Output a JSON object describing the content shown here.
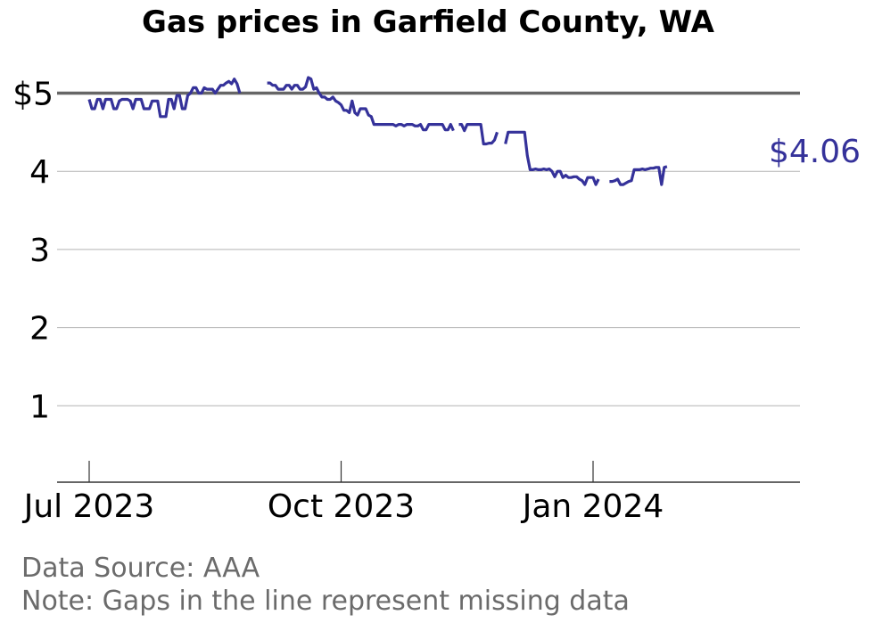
{
  "chart_data": {
    "type": "line",
    "title": "Gas prices in Garfield County, WA",
    "ylim": [
      0,
      5.3
    ],
    "xlim": [
      "2023-06-20",
      "2024-03-30"
    ],
    "y_ticks": [
      {
        "value": 1,
        "label": "1"
      },
      {
        "value": 2,
        "label": "2"
      },
      {
        "value": 3,
        "label": "3"
      },
      {
        "value": 4,
        "label": "4"
      },
      {
        "value": 5,
        "label": "$5"
      }
    ],
    "x_ticks": [
      {
        "date": "2023-07-01",
        "label": "Jul 2023"
      },
      {
        "date": "2023-10-01",
        "label": "Oct 2023"
      },
      {
        "date": "2024-01-01",
        "label": "Jan 2024"
      }
    ],
    "reference_line": {
      "value": 5
    },
    "grid": true,
    "line_color": "#35329a",
    "end_label": "$4.06",
    "series": [
      {
        "segments": [
          [
            [
              "2023-07-01",
              4.92
            ],
            [
              "2023-07-02",
              4.8
            ],
            [
              "2023-07-03",
              4.8
            ],
            [
              "2023-07-04",
              4.92
            ],
            [
              "2023-07-05",
              4.92
            ],
            [
              "2023-07-06",
              4.8
            ],
            [
              "2023-07-07",
              4.92
            ],
            [
              "2023-07-08",
              4.92
            ],
            [
              "2023-07-09",
              4.92
            ],
            [
              "2023-07-10",
              4.8
            ],
            [
              "2023-07-11",
              4.8
            ],
            [
              "2023-07-12",
              4.9
            ],
            [
              "2023-07-13",
              4.92
            ],
            [
              "2023-07-14",
              4.92
            ],
            [
              "2023-07-15",
              4.92
            ],
            [
              "2023-07-16",
              4.9
            ],
            [
              "2023-07-17",
              4.8
            ],
            [
              "2023-07-18",
              4.92
            ],
            [
              "2023-07-19",
              4.92
            ],
            [
              "2023-07-20",
              4.92
            ],
            [
              "2023-07-21",
              4.8
            ],
            [
              "2023-07-22",
              4.8
            ],
            [
              "2023-07-23",
              4.8
            ],
            [
              "2023-07-24",
              4.9
            ],
            [
              "2023-07-25",
              4.9
            ],
            [
              "2023-07-26",
              4.9
            ],
            [
              "2023-07-27",
              4.7
            ],
            [
              "2023-07-28",
              4.7
            ],
            [
              "2023-07-29",
              4.7
            ],
            [
              "2023-07-30",
              4.92
            ],
            [
              "2023-07-31",
              4.92
            ],
            [
              "2023-08-01",
              4.8
            ],
            [
              "2023-08-02",
              4.97
            ],
            [
              "2023-08-03",
              4.97
            ],
            [
              "2023-08-04",
              4.8
            ],
            [
              "2023-08-05",
              4.8
            ],
            [
              "2023-08-06",
              4.97
            ],
            [
              "2023-08-07",
              5.0
            ],
            [
              "2023-08-08",
              5.07
            ],
            [
              "2023-08-09",
              5.07
            ],
            [
              "2023-08-10",
              5.0
            ],
            [
              "2023-08-11",
              5.0
            ],
            [
              "2023-08-12",
              5.07
            ],
            [
              "2023-08-13",
              5.05
            ],
            [
              "2023-08-14",
              5.05
            ],
            [
              "2023-08-15",
              5.05
            ],
            [
              "2023-08-16",
              5.0
            ],
            [
              "2023-08-17",
              5.05
            ],
            [
              "2023-08-18",
              5.1
            ],
            [
              "2023-08-19",
              5.1
            ],
            [
              "2023-08-20",
              5.13
            ],
            [
              "2023-08-21",
              5.15
            ],
            [
              "2023-08-22",
              5.12
            ],
            [
              "2023-08-23",
              5.18
            ],
            [
              "2023-08-24",
              5.12
            ],
            [
              "2023-08-25",
              5.0
            ]
          ],
          [
            [
              "2023-09-04",
              5.13
            ],
            [
              "2023-09-05",
              5.13
            ],
            [
              "2023-09-06",
              5.1
            ],
            [
              "2023-09-07",
              5.1
            ],
            [
              "2023-09-08",
              5.05
            ],
            [
              "2023-09-09",
              5.05
            ],
            [
              "2023-09-10",
              5.05
            ],
            [
              "2023-09-11",
              5.1
            ],
            [
              "2023-09-12",
              5.1
            ],
            [
              "2023-09-13",
              5.05
            ],
            [
              "2023-09-14",
              5.1
            ],
            [
              "2023-09-15",
              5.1
            ],
            [
              "2023-09-16",
              5.05
            ],
            [
              "2023-09-17",
              5.05
            ],
            [
              "2023-09-18",
              5.08
            ],
            [
              "2023-09-19",
              5.2
            ],
            [
              "2023-09-20",
              5.18
            ],
            [
              "2023-09-21",
              5.05
            ],
            [
              "2023-09-22",
              5.07
            ],
            [
              "2023-09-23",
              5.0
            ],
            [
              "2023-09-24",
              4.95
            ],
            [
              "2023-09-25",
              4.95
            ],
            [
              "2023-09-26",
              4.92
            ],
            [
              "2023-09-27",
              4.92
            ],
            [
              "2023-09-28",
              4.95
            ],
            [
              "2023-09-29",
              4.9
            ],
            [
              "2023-09-30",
              4.88
            ],
            [
              "2023-10-01",
              4.85
            ],
            [
              "2023-10-02",
              4.78
            ],
            [
              "2023-10-03",
              4.78
            ],
            [
              "2023-10-04",
              4.75
            ],
            [
              "2023-10-05",
              4.9
            ],
            [
              "2023-10-06",
              4.75
            ],
            [
              "2023-10-07",
              4.72
            ],
            [
              "2023-10-08",
              4.8
            ],
            [
              "2023-10-09",
              4.8
            ],
            [
              "2023-10-10",
              4.8
            ],
            [
              "2023-10-11",
              4.72
            ],
            [
              "2023-10-12",
              4.7
            ],
            [
              "2023-10-13",
              4.6
            ],
            [
              "2023-10-14",
              4.6
            ],
            [
              "2023-10-15",
              4.6
            ],
            [
              "2023-10-16",
              4.6
            ],
            [
              "2023-10-17",
              4.6
            ],
            [
              "2023-10-18",
              4.6
            ],
            [
              "2023-10-19",
              4.6
            ],
            [
              "2023-10-20",
              4.6
            ],
            [
              "2023-10-21",
              4.58
            ],
            [
              "2023-10-22",
              4.6
            ],
            [
              "2023-10-23",
              4.6
            ],
            [
              "2023-10-24",
              4.58
            ],
            [
              "2023-10-25",
              4.6
            ],
            [
              "2023-10-26",
              4.6
            ],
            [
              "2023-10-27",
              4.6
            ],
            [
              "2023-10-28",
              4.58
            ],
            [
              "2023-10-29",
              4.58
            ],
            [
              "2023-10-30",
              4.6
            ],
            [
              "2023-10-31",
              4.53
            ],
            [
              "2023-11-01",
              4.53
            ],
            [
              "2023-11-02",
              4.6
            ],
            [
              "2023-11-03",
              4.6
            ],
            [
              "2023-11-04",
              4.6
            ],
            [
              "2023-11-05",
              4.6
            ],
            [
              "2023-11-06",
              4.6
            ],
            [
              "2023-11-07",
              4.6
            ],
            [
              "2023-11-08",
              4.53
            ],
            [
              "2023-11-09",
              4.53
            ],
            [
              "2023-11-10",
              4.6
            ],
            [
              "2023-11-11",
              4.52
            ]
          ],
          [
            [
              "2023-11-13",
              4.6
            ],
            [
              "2023-11-14",
              4.6
            ],
            [
              "2023-11-15",
              4.52
            ],
            [
              "2023-11-16",
              4.6
            ],
            [
              "2023-11-17",
              4.6
            ],
            [
              "2023-11-18",
              4.6
            ],
            [
              "2023-11-19",
              4.6
            ],
            [
              "2023-11-20",
              4.6
            ],
            [
              "2023-11-21",
              4.6
            ],
            [
              "2023-11-22",
              4.35
            ],
            [
              "2023-11-23",
              4.35
            ],
            [
              "2023-11-24",
              4.36
            ],
            [
              "2023-11-25",
              4.36
            ],
            [
              "2023-11-26",
              4.4
            ],
            [
              "2023-11-27",
              4.5
            ]
          ],
          [
            [
              "2023-11-30",
              4.35
            ],
            [
              "2023-12-01",
              4.5
            ],
            [
              "2023-12-02",
              4.5
            ],
            [
              "2023-12-03",
              4.5
            ],
            [
              "2023-12-04",
              4.5
            ],
            [
              "2023-12-05",
              4.5
            ],
            [
              "2023-12-06",
              4.5
            ],
            [
              "2023-12-07",
              4.5
            ],
            [
              "2023-12-08",
              4.2
            ],
            [
              "2023-12-09",
              4.02
            ],
            [
              "2023-12-10",
              4.02
            ],
            [
              "2023-12-11",
              4.03
            ],
            [
              "2023-12-12",
              4.02
            ],
            [
              "2023-12-13",
              4.02
            ],
            [
              "2023-12-14",
              4.03
            ],
            [
              "2023-12-15",
              4.02
            ],
            [
              "2023-12-16",
              4.03
            ],
            [
              "2023-12-17",
              4.0
            ],
            [
              "2023-12-18",
              3.93
            ],
            [
              "2023-12-19",
              4.0
            ],
            [
              "2023-12-20",
              4.0
            ],
            [
              "2023-12-21",
              3.92
            ],
            [
              "2023-12-22",
              3.95
            ],
            [
              "2023-12-23",
              3.92
            ],
            [
              "2023-12-24",
              3.92
            ],
            [
              "2023-12-25",
              3.93
            ],
            [
              "2023-12-26",
              3.93
            ],
            [
              "2023-12-27",
              3.9
            ],
            [
              "2023-12-28",
              3.88
            ],
            [
              "2023-12-29",
              3.83
            ],
            [
              "2023-12-30",
              3.92
            ],
            [
              "2023-12-31",
              3.92
            ],
            [
              "2024-01-01",
              3.92
            ],
            [
              "2024-01-02",
              3.83
            ],
            [
              "2024-01-03",
              3.9
            ]
          ],
          [
            [
              "2024-01-07",
              3.87
            ],
            [
              "2024-01-08",
              3.87
            ],
            [
              "2024-01-09",
              3.88
            ],
            [
              "2024-01-10",
              3.9
            ],
            [
              "2024-01-11",
              3.83
            ],
            [
              "2024-01-12",
              3.83
            ],
            [
              "2024-01-13",
              3.85
            ],
            [
              "2024-01-14",
              3.87
            ],
            [
              "2024-01-15",
              3.88
            ],
            [
              "2024-01-16",
              4.02
            ],
            [
              "2024-01-17",
              4.02
            ],
            [
              "2024-01-18",
              4.02
            ],
            [
              "2024-01-19",
              4.03
            ],
            [
              "2024-01-20",
              4.02
            ],
            [
              "2024-01-21",
              4.03
            ],
            [
              "2024-01-22",
              4.04
            ],
            [
              "2024-01-23",
              4.04
            ],
            [
              "2024-01-24",
              4.05
            ],
            [
              "2024-01-25",
              4.05
            ],
            [
              "2024-01-26",
              3.83
            ],
            [
              "2024-01-27",
              4.05
            ],
            [
              "2024-01-28",
              4.06
            ]
          ]
        ]
      }
    ]
  },
  "footnotes": {
    "source": "Data Source: AAA",
    "note": "Note: Gaps in the line represent missing data"
  }
}
